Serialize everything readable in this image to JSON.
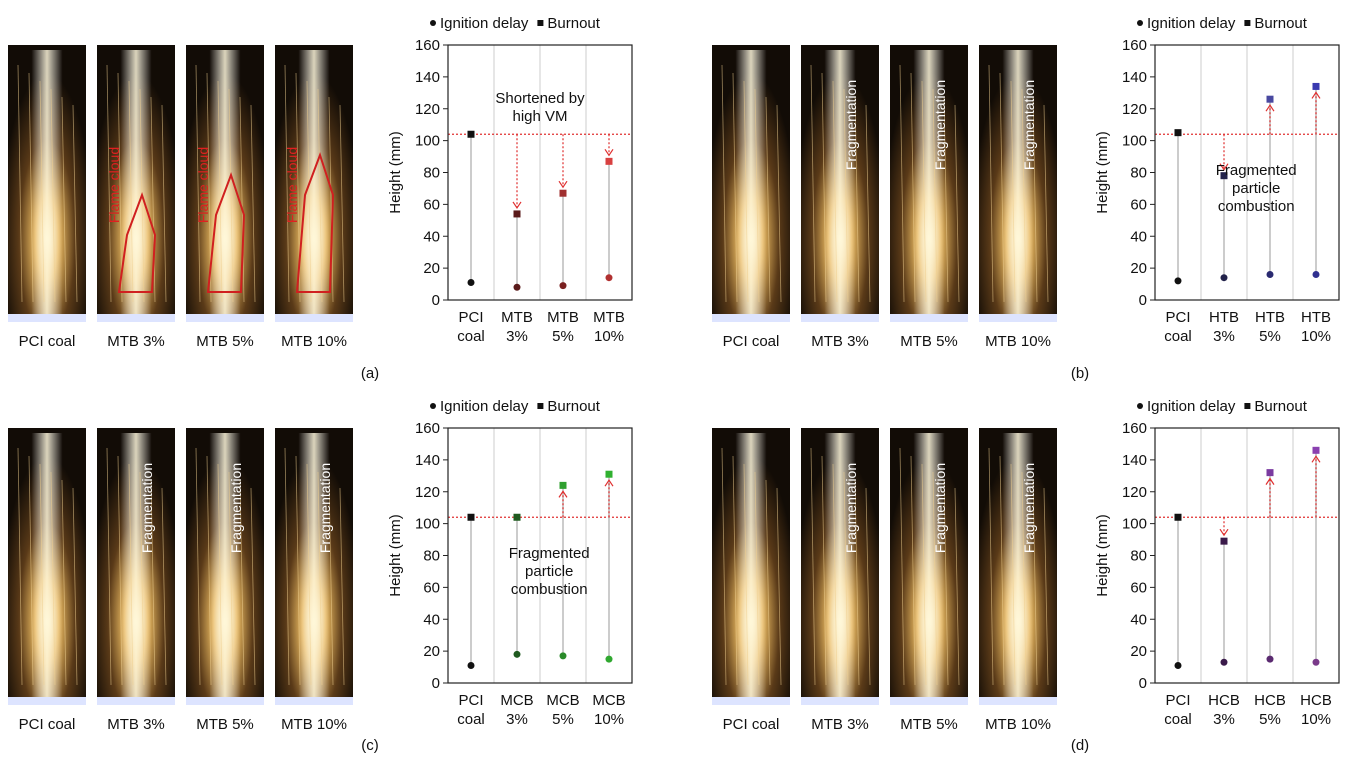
{
  "chart_data": [
    {
      "type": "scatter",
      "panel": "(a)",
      "ylabel": "Height (mm)",
      "ylim": [
        0,
        160
      ],
      "yticks": [
        0,
        20,
        40,
        60,
        80,
        100,
        120,
        140,
        160
      ],
      "reference_line": 104,
      "reference_color": "#e03030",
      "categories": [
        [
          "PCI",
          "coal"
        ],
        [
          "MTB",
          "3%"
        ],
        [
          "MTB",
          "5%"
        ],
        [
          "MTB",
          "10%"
        ]
      ],
      "annotation": [
        "Shortened by",
        "high VM"
      ],
      "photo_labels": [
        "PCI coal",
        "MTB 3%",
        "MTB 5%",
        "MTB 10%"
      ],
      "photo_annotation": "Flame cloud",
      "series": [
        {
          "name": "Ignition delay",
          "marker": "circle",
          "colors": [
            "#111111",
            "#5a1a1a",
            "#7a2020",
            "#b03030"
          ],
          "values": [
            11,
            8,
            9,
            14
          ]
        },
        {
          "name": "Burnout",
          "marker": "square",
          "colors": [
            "#111111",
            "#5a1a1a",
            "#a03030",
            "#d84040"
          ],
          "values": [
            104,
            54,
            67,
            87
          ]
        }
      ]
    },
    {
      "type": "scatter",
      "panel": "(b)",
      "ylabel": "Height (mm)",
      "ylim": [
        0,
        160
      ],
      "yticks": [
        0,
        20,
        40,
        60,
        80,
        100,
        120,
        140,
        160
      ],
      "reference_line": 104,
      "reference_color": "#e03030",
      "categories": [
        [
          "PCI",
          "coal"
        ],
        [
          "HTB",
          "3%"
        ],
        [
          "HTB",
          "5%"
        ],
        [
          "HTB",
          "10%"
        ]
      ],
      "annotation": [
        "Fragmented",
        "particle",
        "combustion"
      ],
      "photo_labels": [
        "PCI coal",
        "MTB 3%",
        "MTB 5%",
        "MTB 10%"
      ],
      "photo_annotation": "Fragmentation",
      "series": [
        {
          "name": "Ignition delay",
          "marker": "circle",
          "colors": [
            "#111111",
            "#22224a",
            "#2a2a70",
            "#303090"
          ],
          "values": [
            12,
            14,
            16,
            16
          ]
        },
        {
          "name": "Burnout",
          "marker": "square",
          "colors": [
            "#111111",
            "#22224a",
            "#4848a0",
            "#3a3ab0"
          ],
          "values": [
            105,
            78,
            126,
            134
          ]
        }
      ]
    },
    {
      "type": "scatter",
      "panel": "(c)",
      "ylabel": "Height (mm)",
      "ylim": [
        0,
        160
      ],
      "yticks": [
        0,
        20,
        40,
        60,
        80,
        100,
        120,
        140,
        160
      ],
      "reference_line": 104,
      "reference_color": "#e03030",
      "categories": [
        [
          "PCI",
          "coal"
        ],
        [
          "MCB",
          "3%"
        ],
        [
          "MCB",
          "5%"
        ],
        [
          "MCB",
          "10%"
        ]
      ],
      "annotation": [
        "Fragmented",
        "particle",
        "combustion"
      ],
      "photo_labels": [
        "PCI coal",
        "MTB 3%",
        "MTB 5%",
        "MTB 10%"
      ],
      "photo_annotation": "Fragmentation",
      "series": [
        {
          "name": "Ignition delay",
          "marker": "circle",
          "colors": [
            "#111111",
            "#1f5a1f",
            "#2a8a2a",
            "#30a830"
          ],
          "values": [
            11,
            18,
            17,
            15
          ]
        },
        {
          "name": "Burnout",
          "marker": "square",
          "colors": [
            "#111111",
            "#1f5a1f",
            "#30a030",
            "#30b030"
          ],
          "values": [
            104,
            104,
            124,
            131
          ]
        }
      ]
    },
    {
      "type": "scatter",
      "panel": "(d)",
      "ylabel": "Height (mm)",
      "ylim": [
        0,
        160
      ],
      "yticks": [
        0,
        20,
        40,
        60,
        80,
        100,
        120,
        140,
        160
      ],
      "reference_line": 104,
      "reference_color": "#e03030",
      "categories": [
        [
          "PCI",
          "coal"
        ],
        [
          "HCB",
          "3%"
        ],
        [
          "HCB",
          "5%"
        ],
        [
          "HCB",
          "10%"
        ]
      ],
      "annotation": [],
      "photo_labels": [
        "PCI coal",
        "MTB 3%",
        "MTB 5%",
        "MTB 10%"
      ],
      "photo_annotation": "Fragmentation",
      "series": [
        {
          "name": "Ignition delay",
          "marker": "circle",
          "colors": [
            "#111111",
            "#3a1a4a",
            "#5a2a70",
            "#7a3a8a"
          ],
          "values": [
            11,
            13,
            15,
            13
          ]
        },
        {
          "name": "Burnout",
          "marker": "square",
          "colors": [
            "#111111",
            "#3a1a4a",
            "#7a3aa0",
            "#8a40b0"
          ],
          "values": [
            104,
            89,
            132,
            146
          ]
        }
      ]
    }
  ]
}
